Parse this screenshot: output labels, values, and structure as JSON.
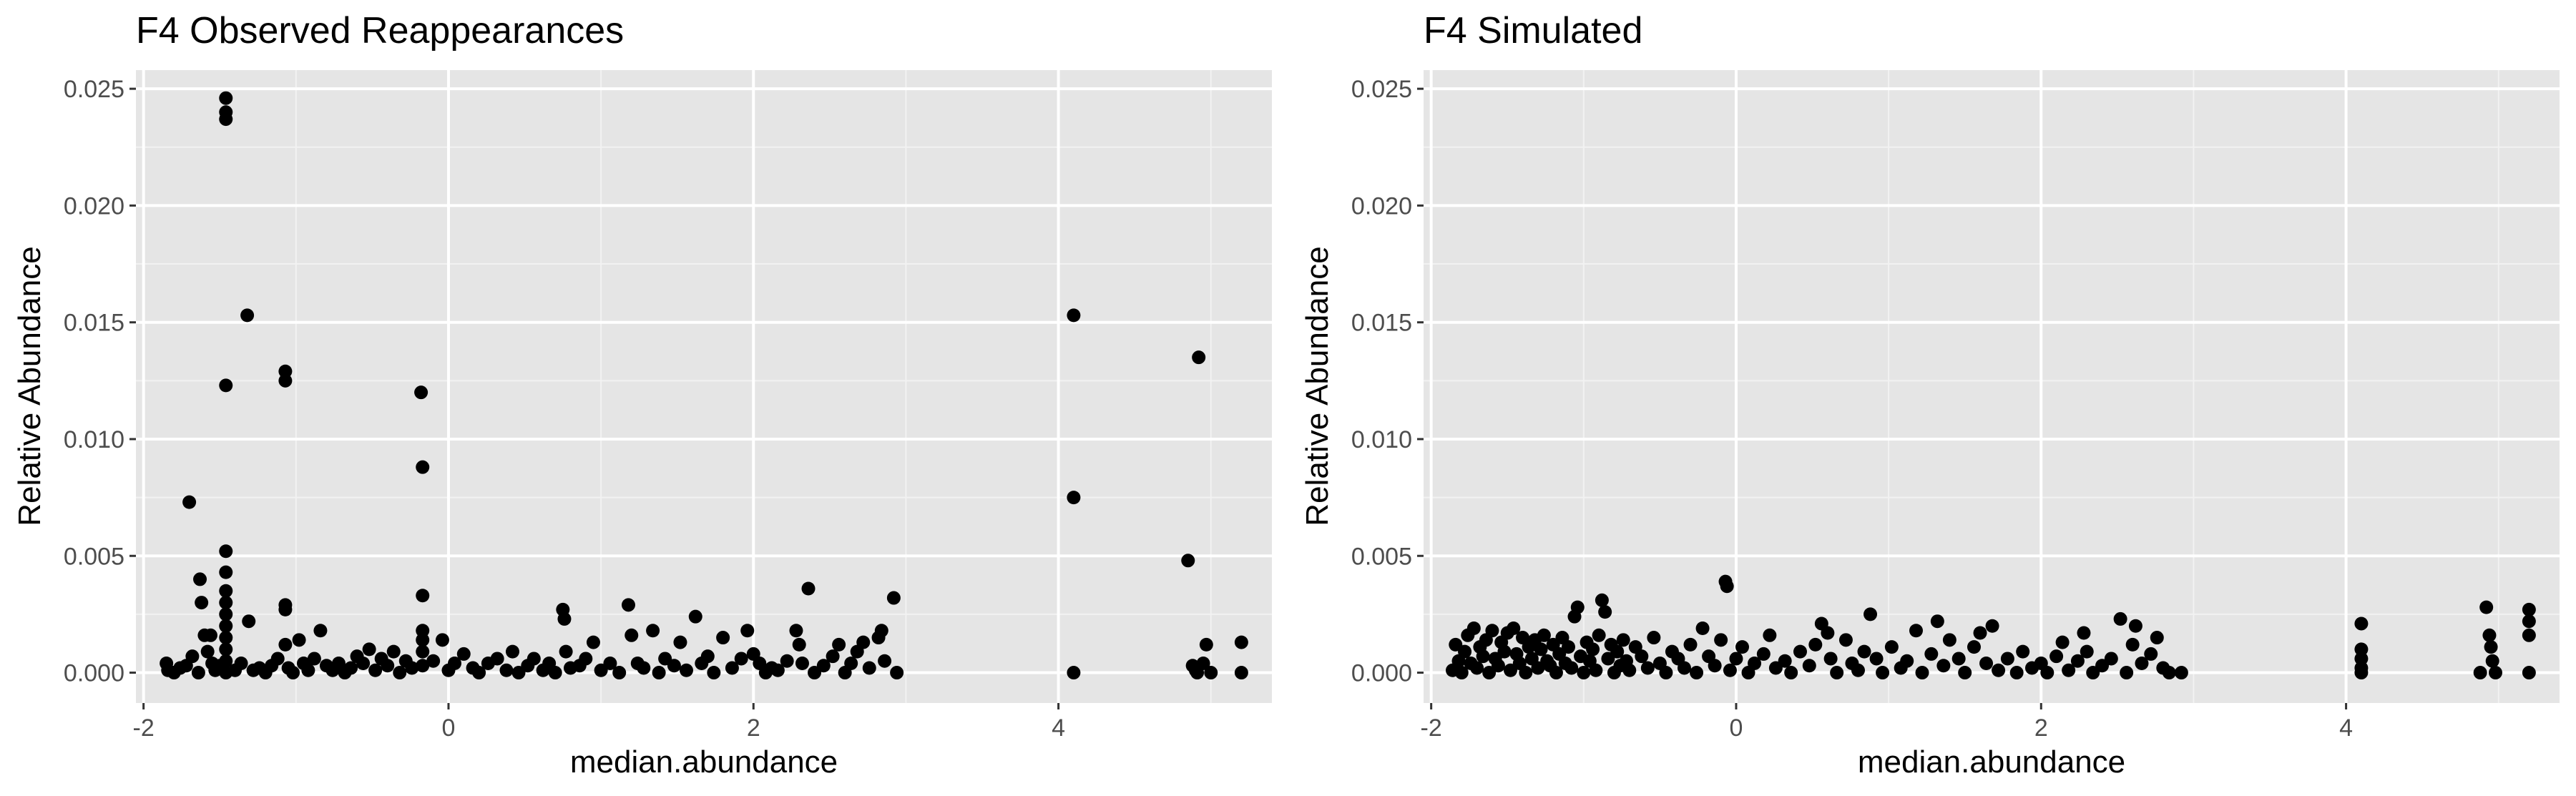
{
  "chart_data": [
    {
      "type": "scatter",
      "title": "F4 Observed Reappearances",
      "xlabel": "median.abundance",
      "ylabel": "Relative Abundance",
      "xlim": [
        -2.05,
        5.4
      ],
      "ylim": [
        -0.0013,
        0.0258
      ],
      "x_ticks": [
        -2,
        0,
        2,
        4
      ],
      "x_tick_labels": [
        "-2",
        "0",
        "2",
        "4"
      ],
      "y_ticks": [
        0.0,
        0.005,
        0.01,
        0.015,
        0.02,
        0.025
      ],
      "y_tick_labels": [
        "0.000",
        "0.005",
        "0.010",
        "0.015",
        "0.020",
        "0.025"
      ],
      "grid": true,
      "background": "#e5e5e5",
      "point_color": "#000000",
      "points": [
        [
          -1.85,
          0.0004
        ],
        [
          -1.84,
          0.0001
        ],
        [
          -1.8,
          0.0
        ],
        [
          -1.76,
          0.0002
        ],
        [
          -1.72,
          0.0003
        ],
        [
          -1.7,
          0.0073
        ],
        [
          -1.68,
          0.0007
        ],
        [
          -1.64,
          0.0
        ],
        [
          -1.63,
          0.004
        ],
        [
          -1.62,
          0.003
        ],
        [
          -1.6,
          0.0016
        ],
        [
          -1.58,
          0.0009
        ],
        [
          -1.56,
          0.0016
        ],
        [
          -1.55,
          0.0004
        ],
        [
          -1.53,
          0.0001
        ],
        [
          -1.5,
          0.0003
        ],
        [
          -1.46,
          0.0246
        ],
        [
          -1.46,
          0.024
        ],
        [
          -1.46,
          0.0237
        ],
        [
          -1.46,
          0.0123
        ],
        [
          -1.46,
          0.0052
        ],
        [
          -1.46,
          0.0043
        ],
        [
          -1.46,
          0.0035
        ],
        [
          -1.46,
          0.003
        ],
        [
          -1.46,
          0.0025
        ],
        [
          -1.46,
          0.002
        ],
        [
          -1.46,
          0.0015
        ],
        [
          -1.46,
          0.001
        ],
        [
          -1.46,
          0.0005
        ],
        [
          -1.46,
          0.0
        ],
        [
          -1.4,
          0.0001
        ],
        [
          -1.36,
          0.0004
        ],
        [
          -1.32,
          0.0153
        ],
        [
          -1.31,
          0.0022
        ],
        [
          -1.28,
          0.0001
        ],
        [
          -1.24,
          0.0002
        ],
        [
          -1.2,
          0.0
        ],
        [
          -1.16,
          0.0003
        ],
        [
          -1.12,
          0.0006
        ],
        [
          -1.07,
          0.0129
        ],
        [
          -1.07,
          0.0125
        ],
        [
          -1.07,
          0.0029
        ],
        [
          -1.07,
          0.0027
        ],
        [
          -1.07,
          0.0012
        ],
        [
          -1.05,
          0.0002
        ],
        [
          -1.02,
          0.0
        ],
        [
          -0.98,
          0.0014
        ],
        [
          -0.95,
          0.0004
        ],
        [
          -0.92,
          0.0001
        ],
        [
          -0.88,
          0.0006
        ],
        [
          -0.84,
          0.0018
        ],
        [
          -0.8,
          0.0003
        ],
        [
          -0.76,
          0.0001
        ],
        [
          -0.72,
          0.0004
        ],
        [
          -0.68,
          0.0
        ],
        [
          -0.64,
          0.0002
        ],
        [
          -0.6,
          0.0007
        ],
        [
          -0.56,
          0.0004
        ],
        [
          -0.52,
          0.001
        ],
        [
          -0.48,
          0.0001
        ],
        [
          -0.44,
          0.0006
        ],
        [
          -0.4,
          0.0003
        ],
        [
          -0.36,
          0.0009
        ],
        [
          -0.32,
          0.0
        ],
        [
          -0.28,
          0.0005
        ],
        [
          -0.24,
          0.0002
        ],
        [
          -0.18,
          0.012
        ],
        [
          -0.17,
          0.0088
        ],
        [
          -0.17,
          0.0033
        ],
        [
          -0.17,
          0.0018
        ],
        [
          -0.17,
          0.0014
        ],
        [
          -0.17,
          0.0009
        ],
        [
          -0.17,
          0.0003
        ],
        [
          -0.1,
          0.0005
        ],
        [
          -0.04,
          0.0014
        ],
        [
          0.0,
          0.0001
        ],
        [
          0.04,
          0.0004
        ],
        [
          0.1,
          0.0008
        ],
        [
          0.16,
          0.0002
        ],
        [
          0.2,
          0.0
        ],
        [
          0.26,
          0.0004
        ],
        [
          0.32,
          0.0006
        ],
        [
          0.38,
          0.0001
        ],
        [
          0.42,
          0.0009
        ],
        [
          0.46,
          0.0
        ],
        [
          0.52,
          0.0003
        ],
        [
          0.56,
          0.0006
        ],
        [
          0.62,
          0.0001
        ],
        [
          0.66,
          0.0004
        ],
        [
          0.7,
          0.0
        ],
        [
          0.75,
          0.0027
        ],
        [
          0.76,
          0.0023
        ],
        [
          0.77,
          0.0009
        ],
        [
          0.8,
          0.0002
        ],
        [
          0.86,
          0.0003
        ],
        [
          0.9,
          0.0006
        ],
        [
          0.95,
          0.0013
        ],
        [
          1.0,
          0.0001
        ],
        [
          1.06,
          0.0004
        ],
        [
          1.12,
          0.0
        ],
        [
          1.18,
          0.0029
        ],
        [
          1.2,
          0.0016
        ],
        [
          1.24,
          0.0004
        ],
        [
          1.28,
          0.0002
        ],
        [
          1.34,
          0.0018
        ],
        [
          1.38,
          0.0
        ],
        [
          1.42,
          0.0006
        ],
        [
          1.48,
          0.0003
        ],
        [
          1.52,
          0.0013
        ],
        [
          1.56,
          0.0001
        ],
        [
          1.62,
          0.0024
        ],
        [
          1.66,
          0.0004
        ],
        [
          1.7,
          0.0007
        ],
        [
          1.74,
          0.0
        ],
        [
          1.8,
          0.0015
        ],
        [
          1.86,
          0.0002
        ],
        [
          1.92,
          0.0006
        ],
        [
          1.96,
          0.0018
        ],
        [
          2.0,
          0.0008
        ],
        [
          2.04,
          0.0004
        ],
        [
          2.08,
          0.0
        ],
        [
          2.12,
          0.0002
        ],
        [
          2.16,
          0.0001
        ],
        [
          2.22,
          0.0005
        ],
        [
          2.28,
          0.0018
        ],
        [
          2.3,
          0.0012
        ],
        [
          2.32,
          0.0004
        ],
        [
          2.36,
          0.0036
        ],
        [
          2.4,
          0.0
        ],
        [
          2.46,
          0.0003
        ],
        [
          2.52,
          0.0007
        ],
        [
          2.56,
          0.0012
        ],
        [
          2.6,
          0.0
        ],
        [
          2.64,
          0.0004
        ],
        [
          2.68,
          0.0009
        ],
        [
          2.72,
          0.0013
        ],
        [
          2.76,
          0.0002
        ],
        [
          2.82,
          0.0015
        ],
        [
          2.84,
          0.0018
        ],
        [
          2.86,
          0.0005
        ],
        [
          2.92,
          0.0032
        ],
        [
          2.94,
          0.0
        ],
        [
          4.1,
          0.0153
        ],
        [
          4.1,
          0.0075
        ],
        [
          4.1,
          0.0
        ],
        [
          4.85,
          0.0048
        ],
        [
          4.88,
          0.0003
        ],
        [
          4.9,
          0.0001
        ],
        [
          4.91,
          0.0
        ],
        [
          4.92,
          0.0135
        ],
        [
          4.95,
          0.0004
        ],
        [
          4.97,
          0.0012
        ],
        [
          5.0,
          0.0
        ],
        [
          5.2,
          0.0013
        ],
        [
          5.2,
          0.0
        ]
      ]
    },
    {
      "type": "scatter",
      "title": "F4 Simulated",
      "xlabel": "median.abundance",
      "ylabel": "Relative Abundance",
      "xlim": [
        -2.05,
        5.4
      ],
      "ylim": [
        -0.0013,
        0.0258
      ],
      "x_ticks": [
        -2,
        0,
        2,
        4
      ],
      "x_tick_labels": [
        "-2",
        "0",
        "2",
        "4"
      ],
      "y_ticks": [
        0.0,
        0.005,
        0.01,
        0.015,
        0.02,
        0.025
      ],
      "y_tick_labels": [
        "0.000",
        "0.005",
        "0.010",
        "0.015",
        "0.020",
        "0.025"
      ],
      "grid": true,
      "background": "#e5e5e5",
      "point_color": "#000000",
      "points": [
        [
          -1.86,
          0.0001
        ],
        [
          -1.84,
          0.0012
        ],
        [
          -1.82,
          0.0005
        ],
        [
          -1.8,
          0.0
        ],
        [
          -1.78,
          0.0009
        ],
        [
          -1.76,
          0.0016
        ],
        [
          -1.74,
          0.0004
        ],
        [
          -1.72,
          0.0019
        ],
        [
          -1.7,
          0.0002
        ],
        [
          -1.68,
          0.0011
        ],
        [
          -1.66,
          0.0007
        ],
        [
          -1.64,
          0.0014
        ],
        [
          -1.62,
          0.0
        ],
        [
          -1.6,
          0.0018
        ],
        [
          -1.58,
          0.0006
        ],
        [
          -1.56,
          0.0003
        ],
        [
          -1.54,
          0.0013
        ],
        [
          -1.52,
          0.0009
        ],
        [
          -1.5,
          0.0017
        ],
        [
          -1.48,
          0.0001
        ],
        [
          -1.46,
          0.0019
        ],
        [
          -1.44,
          0.0008
        ],
        [
          -1.42,
          0.0004
        ],
        [
          -1.4,
          0.0015
        ],
        [
          -1.38,
          0.0
        ],
        [
          -1.36,
          0.0011
        ],
        [
          -1.34,
          0.0006
        ],
        [
          -1.32,
          0.0014
        ],
        [
          -1.3,
          0.0002
        ],
        [
          -1.28,
          0.001
        ],
        [
          -1.26,
          0.0016
        ],
        [
          -1.24,
          0.0005
        ],
        [
          -1.22,
          0.0003
        ],
        [
          -1.2,
          0.0012
        ],
        [
          -1.18,
          0.0
        ],
        [
          -1.16,
          0.0008
        ],
        [
          -1.14,
          0.0015
        ],
        [
          -1.12,
          0.0004
        ],
        [
          -1.1,
          0.0011
        ],
        [
          -1.08,
          0.0002
        ],
        [
          -1.06,
          0.0024
        ],
        [
          -1.04,
          0.0028
        ],
        [
          -1.02,
          0.0007
        ],
        [
          -1.0,
          0.0
        ],
        [
          -0.98,
          0.0013
        ],
        [
          -0.96,
          0.0005
        ],
        [
          -0.94,
          0.001
        ],
        [
          -0.92,
          0.0001
        ],
        [
          -0.9,
          0.0016
        ],
        [
          -0.88,
          0.0031
        ],
        [
          -0.86,
          0.0026
        ],
        [
          -0.84,
          0.0006
        ],
        [
          -0.82,
          0.0012
        ],
        [
          -0.8,
          0.0
        ],
        [
          -0.78,
          0.0009
        ],
        [
          -0.76,
          0.0003
        ],
        [
          -0.74,
          0.0014
        ],
        [
          -0.72,
          0.0005
        ],
        [
          -0.7,
          0.0001
        ],
        [
          -0.66,
          0.0011
        ],
        [
          -0.62,
          0.0007
        ],
        [
          -0.58,
          0.0002
        ],
        [
          -0.54,
          0.0015
        ],
        [
          -0.5,
          0.0004
        ],
        [
          -0.46,
          0.0
        ],
        [
          -0.42,
          0.0009
        ],
        [
          -0.38,
          0.0006
        ],
        [
          -0.34,
          0.0002
        ],
        [
          -0.3,
          0.0012
        ],
        [
          -0.26,
          0.0
        ],
        [
          -0.22,
          0.0019
        ],
        [
          -0.18,
          0.0007
        ],
        [
          -0.14,
          0.0003
        ],
        [
          -0.1,
          0.0014
        ],
        [
          -0.07,
          0.0039
        ],
        [
          -0.06,
          0.0037
        ],
        [
          -0.04,
          0.0001
        ],
        [
          0.0,
          0.0006
        ],
        [
          0.04,
          0.0011
        ],
        [
          0.08,
          0.0
        ],
        [
          0.12,
          0.0004
        ],
        [
          0.18,
          0.0008
        ],
        [
          0.22,
          0.0016
        ],
        [
          0.26,
          0.0002
        ],
        [
          0.32,
          0.0005
        ],
        [
          0.36,
          0.0
        ],
        [
          0.42,
          0.0009
        ],
        [
          0.48,
          0.0003
        ],
        [
          0.52,
          0.0012
        ],
        [
          0.56,
          0.0021
        ],
        [
          0.6,
          0.0017
        ],
        [
          0.62,
          0.0006
        ],
        [
          0.66,
          0.0
        ],
        [
          0.72,
          0.0014
        ],
        [
          0.76,
          0.0004
        ],
        [
          0.8,
          0.0001
        ],
        [
          0.84,
          0.0009
        ],
        [
          0.88,
          0.0025
        ],
        [
          0.92,
          0.0006
        ],
        [
          0.96,
          0.0
        ],
        [
          1.02,
          0.0011
        ],
        [
          1.08,
          0.0002
        ],
        [
          1.12,
          0.0005
        ],
        [
          1.18,
          0.0018
        ],
        [
          1.22,
          0.0
        ],
        [
          1.28,
          0.0008
        ],
        [
          1.32,
          0.0022
        ],
        [
          1.36,
          0.0003
        ],
        [
          1.4,
          0.0014
        ],
        [
          1.46,
          0.0006
        ],
        [
          1.5,
          0.0
        ],
        [
          1.56,
          0.0011
        ],
        [
          1.6,
          0.0017
        ],
        [
          1.64,
          0.0004
        ],
        [
          1.68,
          0.002
        ],
        [
          1.72,
          0.0001
        ],
        [
          1.78,
          0.0006
        ],
        [
          1.84,
          0.0
        ],
        [
          1.88,
          0.0009
        ],
        [
          1.94,
          0.0002
        ],
        [
          2.0,
          0.0004
        ],
        [
          2.04,
          0.0
        ],
        [
          2.1,
          0.0007
        ],
        [
          2.14,
          0.0013
        ],
        [
          2.18,
          0.0001
        ],
        [
          2.24,
          0.0005
        ],
        [
          2.28,
          0.0017
        ],
        [
          2.3,
          0.0009
        ],
        [
          2.34,
          0.0
        ],
        [
          2.4,
          0.0003
        ],
        [
          2.46,
          0.0006
        ],
        [
          2.52,
          0.0023
        ],
        [
          2.56,
          0.0
        ],
        [
          2.6,
          0.0012
        ],
        [
          2.62,
          0.002
        ],
        [
          2.66,
          0.0004
        ],
        [
          2.72,
          0.0008
        ],
        [
          2.76,
          0.0015
        ],
        [
          2.8,
          0.0002
        ],
        [
          2.84,
          0.0
        ],
        [
          2.92,
          0.0
        ],
        [
          4.1,
          0.0021
        ],
        [
          4.1,
          0.001
        ],
        [
          4.1,
          0.0006
        ],
        [
          4.1,
          0.0002
        ],
        [
          4.1,
          0.0
        ],
        [
          4.88,
          0.0
        ],
        [
          4.92,
          0.0028
        ],
        [
          4.94,
          0.0016
        ],
        [
          4.95,
          0.0011
        ],
        [
          4.96,
          0.0005
        ],
        [
          4.98,
          0.0
        ],
        [
          5.2,
          0.0027
        ],
        [
          5.2,
          0.0022
        ],
        [
          5.2,
          0.0016
        ],
        [
          5.2,
          0.0
        ]
      ]
    }
  ]
}
